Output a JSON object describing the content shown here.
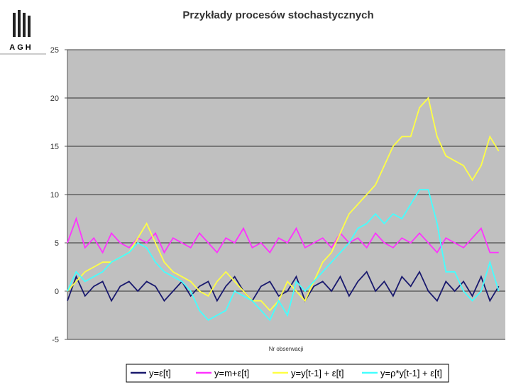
{
  "logo": "AGH",
  "chart_data": {
    "type": "line",
    "title": "Przykłady procesów stochastycznych",
    "x_label": "Nr obserwacji",
    "x": [
      1,
      5,
      9,
      13,
      17,
      21,
      25,
      29,
      33,
      37,
      41,
      45,
      49,
      53,
      57,
      61,
      65,
      69,
      73,
      77,
      81,
      85,
      89,
      93,
      97,
      101,
      105,
      109,
      113,
      117,
      121,
      125,
      129,
      133,
      137,
      141,
      145,
      149,
      153,
      157,
      161,
      165,
      169,
      173,
      177,
      181,
      185,
      189,
      193,
      197
    ],
    "xlim": [
      1,
      200
    ],
    "ylim": [
      -5,
      25
    ],
    "yticks": [
      -5,
      0,
      5,
      10,
      15,
      20,
      25
    ],
    "grid": true,
    "legend": "bottom",
    "series": [
      {
        "name": "y=ε[t]",
        "color": "#1a1a6e",
        "values": [
          -1,
          1.5,
          -0.5,
          0.5,
          1,
          -1,
          0.5,
          1,
          0,
          1,
          0.5,
          -1,
          0,
          1,
          -0.5,
          0.5,
          1,
          -1,
          0.5,
          1.5,
          0,
          -1,
          0.5,
          1,
          -0.5,
          0,
          1.5,
          -1,
          0.5,
          1,
          0,
          1.5,
          -0.5,
          1,
          2,
          0,
          1,
          -0.5,
          1.5,
          0.5,
          2,
          0,
          -1,
          1,
          0,
          1,
          -0.5,
          1.5,
          -1,
          0.5
        ]
      },
      {
        "name": "y=m+ε[t]",
        "color": "#ff33ff",
        "values": [
          5,
          7.5,
          4.5,
          5.5,
          4,
          6,
          5,
          4.5,
          5.5,
          5,
          6,
          4,
          5.5,
          5,
          4.5,
          6,
          5,
          4,
          5.5,
          5,
          6.5,
          4.5,
          5,
          4,
          5.5,
          5,
          6.5,
          4.5,
          5,
          5.5,
          4.5,
          6,
          5,
          5.5,
          4.5,
          6,
          5,
          4.5,
          5.5,
          5,
          6,
          5,
          4,
          5.5,
          5,
          4.5,
          5.5,
          6.5,
          4,
          4
        ]
      },
      {
        "name": "y=y[t-1] + ε[t]",
        "color": "#ffff44",
        "values": [
          0,
          1,
          2,
          2.5,
          3,
          3,
          3.5,
          4,
          5.5,
          7,
          5,
          3,
          2,
          1.5,
          1,
          0,
          -0.5,
          1,
          2,
          1,
          0,
          -1,
          -1,
          -2,
          -1,
          1,
          0,
          -1,
          1,
          3,
          4,
          6,
          8,
          9,
          10,
          11,
          13,
          15,
          16,
          16,
          19,
          20,
          16,
          14,
          13.5,
          13,
          11.5,
          13,
          16,
          14.5
        ]
      },
      {
        "name": "y=ρ*y[t-1] + ε[t]",
        "color": "#44ffff",
        "values": [
          0,
          2,
          1,
          1.5,
          2,
          3,
          3.5,
          4,
          5,
          4.5,
          3,
          2,
          1.5,
          1,
          0,
          -2,
          -3,
          -2.5,
          -2,
          0,
          -0.5,
          -1,
          -2,
          -3,
          -1,
          -2.5,
          1,
          0,
          1,
          2,
          3,
          4,
          5,
          6.5,
          7,
          8,
          7,
          8,
          7.5,
          9,
          10.5,
          10.5,
          7,
          2,
          2,
          0,
          -1,
          0,
          3,
          0
        ]
      }
    ]
  }
}
